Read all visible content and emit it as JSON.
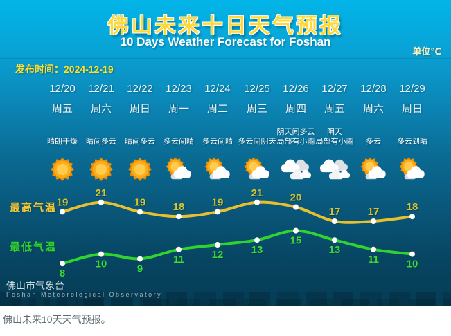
{
  "header": {
    "title": "佛山未来十日天气预报",
    "subtitle": "10 Days Weather Forecast for Foshan",
    "unit": "单位℃",
    "issued": "发布时间：2024-12-19"
  },
  "footer": {
    "agency_cn": "佛山市气象台",
    "agency_en": "Foshan Meteorological Observatory"
  },
  "caption": "佛山未来10天天气预报。",
  "colors": {
    "bg_top": "#02b5e8",
    "bg_bottom": "#063c55",
    "title_yellow": "#ffd83a",
    "high_line": "#e9bf2e",
    "low_line": "#2fd42f"
  },
  "chart_data": {
    "type": "line",
    "title": "佛山未来十日天气预报",
    "subtitle": "10 Days Weather Forecast for Foshan",
    "unit": "℃",
    "categories": [
      "12/20",
      "12/21",
      "12/22",
      "12/23",
      "12/24",
      "12/25",
      "12/26",
      "12/27",
      "12/28",
      "12/29"
    ],
    "weekdays": [
      "周五",
      "周六",
      "周日",
      "周一",
      "周二",
      "周三",
      "周四",
      "周五",
      "周六",
      "周日"
    ],
    "conditions": [
      [
        "晴朗干燥"
      ],
      [
        "晴间多云"
      ],
      [
        "晴间多云"
      ],
      [
        "多云间晴"
      ],
      [
        "多云间晴"
      ],
      [
        "多云间阴天"
      ],
      [
        "阴天间多云",
        "局部有小雨"
      ],
      [
        "阴天",
        "局部有小雨"
      ],
      [
        "多云"
      ],
      [
        "多云到晴"
      ]
    ],
    "icons": [
      "sunny",
      "sunny",
      "sunny",
      "sun-cloud",
      "sun-cloud",
      "sun-cloud",
      "cloudy",
      "cloudy",
      "sun-cloud",
      "sun-cloud"
    ],
    "series": [
      {
        "name": "最高气温",
        "color": "#e9bf2e",
        "label_color": "#d9c52a",
        "values": [
          19,
          21,
          19,
          18,
          19,
          21,
          20,
          17,
          17,
          18
        ]
      },
      {
        "name": "最低气温",
        "color": "#2fd42f",
        "label_color": "#3bdb35",
        "values": [
          8,
          10,
          9,
          11,
          12,
          13,
          15,
          13,
          11,
          10
        ]
      }
    ],
    "ylim": [
      7,
      22
    ],
    "grid": false,
    "legend_position": "left-of-lines"
  }
}
